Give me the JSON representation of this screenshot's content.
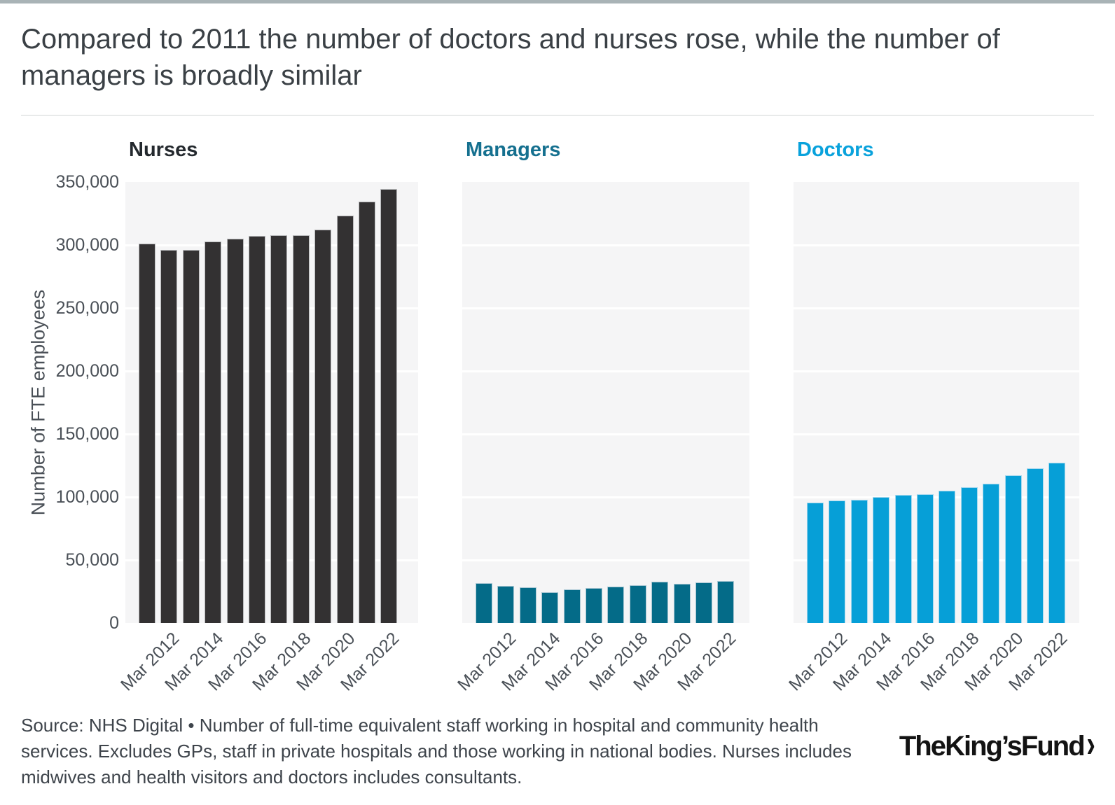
{
  "page": {
    "title": "Compared to 2011 the number of doctors and nurses rose, while the number of managers is broadly similar",
    "source_note": "Source: NHS Digital • Number of full-time equivalent staff working in hospital and community health services. Excludes GPs, staff in private hospitals and those working in national bodies. Nurses includes midwives and health visitors and doctors includes consultants.",
    "logo_text": "The King’s Fund",
    "logo_chevron": "›",
    "accent_bar_color": "#a9b3b6"
  },
  "chart_data": {
    "type": "bar",
    "layout": "small-multiples",
    "ylabel": "Number of FTE employees",
    "ylim": [
      0,
      350000
    ],
    "ytick_step": 50000,
    "ytick_labels": [
      "0",
      "50,000",
      "100,000",
      "150,000",
      "200,000",
      "250,000",
      "300,000",
      "350,000"
    ],
    "categories": [
      "Mar 2011",
      "Mar 2012",
      "Mar 2013",
      "Mar 2014",
      "Mar 2015",
      "Mar 2016",
      "Mar 2017",
      "Mar 2018",
      "Mar 2019",
      "Mar 2020",
      "Mar 2021",
      "Mar 2022"
    ],
    "xtick_labels": [
      "Mar 2012",
      "Mar 2014",
      "Mar 2016",
      "Mar 2018",
      "Mar 2020",
      "Mar 2022"
    ],
    "grid": true,
    "legend": "none",
    "plot_bg": "#f5f5f6",
    "gridline_color": "#ffffff",
    "panels": [
      {
        "name": "Nurses",
        "header_color": "#24292e",
        "bar_color": "#333132",
        "bar_stroke": "#b9babc",
        "values": [
          301000,
          296000,
          296000,
          303000,
          305000,
          307000,
          308000,
          308000,
          312500,
          323500,
          334500,
          344500
        ]
      },
      {
        "name": "Managers",
        "header_color": "#15708f",
        "bar_color": "#046b88",
        "bar_stroke": "#a9c7d3",
        "values": [
          31500,
          29500,
          28500,
          24500,
          26500,
          28000,
          29000,
          30000,
          33000,
          31000,
          32000,
          33500
        ]
      },
      {
        "name": "Doctors",
        "header_color": "#09a2dc",
        "bar_color": "#069fd7",
        "bar_stroke": "#a6d8ee",
        "values": [
          95500,
          97000,
          98000,
          100000,
          101500,
          102500,
          105000,
          108000,
          110500,
          117000,
          123000,
          127500
        ]
      }
    ]
  }
}
